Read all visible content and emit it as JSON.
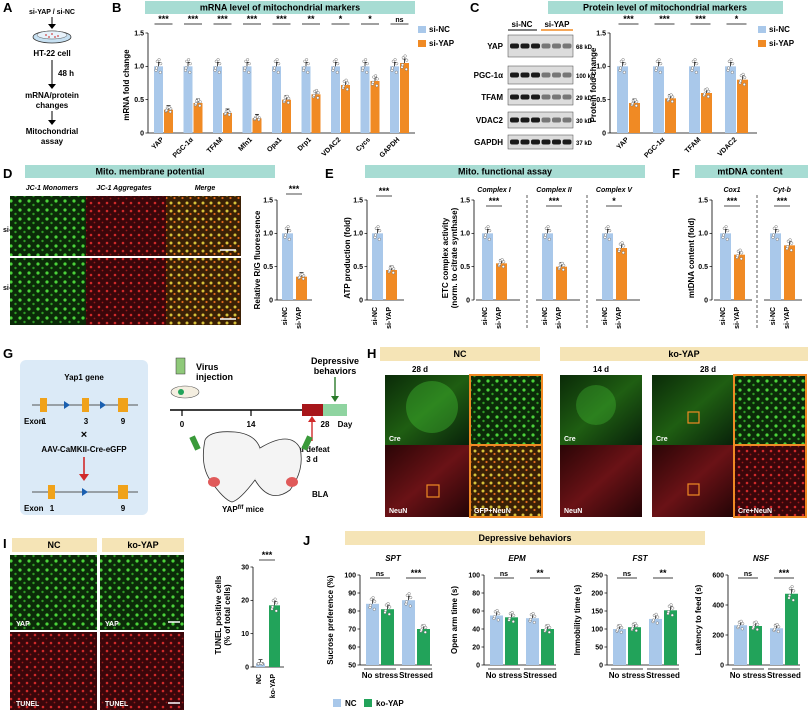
{
  "colors": {
    "nc": "#a9c8ea",
    "yap": "#f08a24",
    "ko": "#22a35a",
    "header_teal": "#a7dcd3",
    "header_beige": "#f5e4b6",
    "dot": "#ffffff"
  },
  "panels": {
    "A": {
      "letter": "A",
      "top_label": "si-YAP / si-NC",
      "cell": "HT-22 cell",
      "time": "48 h",
      "step1": "mRNA/protein",
      "step1b": "changes",
      "step2": "Mitochondrial",
      "step2b": "assay"
    },
    "B": {
      "letter": "B",
      "header": "mRNA level of mitochondrial markers",
      "ylabel": "mRNA fold change"
    },
    "C": {
      "letter": "C",
      "header": "Protein level of mitochondrial markers",
      "ylabel": "Protein fold change",
      "blot_cols": [
        "si-NC",
        "si-YAP"
      ],
      "blot_rows": [
        {
          "name": "YAP",
          "kd": "68 kD"
        },
        {
          "name": "PGC-1α",
          "kd": "100 kD"
        },
        {
          "name": "TFAM",
          "kd": "29 kD"
        },
        {
          "name": "VDAC2",
          "kd": "30 kD"
        },
        {
          "name": "GAPDH",
          "kd": "37 kD"
        }
      ]
    },
    "D": {
      "letter": "D",
      "header": "Mito. membrane potential",
      "cols": [
        "JC-1 Monomers",
        "JC-1 Aggregates",
        "Merge"
      ],
      "rows": [
        "si-NC",
        "si-YAP"
      ],
      "ylabel": "Relative R/G fluorescence"
    },
    "E": {
      "letter": "E",
      "header": "Mito. functional assay",
      "ylabel1": "ATP production (fold)",
      "ylabel2a": "ETC complex activity",
      "ylabel2b": "(norm. to citrate synthase)",
      "complexes": [
        "Complex I",
        "Complex II",
        "Complex V"
      ]
    },
    "F": {
      "letter": "F",
      "header": "mtDNA content",
      "ylabel": "mtDNA content (fold)",
      "genes": [
        "Cox1",
        "Cyt-b"
      ]
    },
    "G": {
      "letter": "G",
      "gene": "Yap1 gene",
      "exon_label": "Exon",
      "exon_nums": [
        "1",
        "3",
        "9"
      ],
      "exon_nums2": [
        "1",
        "9"
      ],
      "virus": "AAV-CaMKII-Cre-eGFP",
      "cross": "×",
      "tl_virus1": "Virus",
      "tl_virus2": "injection",
      "tl_dep1": "Depressive",
      "tl_dep2": "behaviors",
      "tl_ticks": [
        "0",
        "14",
        "28",
        "Day"
      ],
      "tl_sd1": "Social defeat",
      "tl_sd2": "3 d",
      "bla": "BLA",
      "mice": "YAP",
      "mice_sup": "f/f",
      "mice_suffix": " mice"
    },
    "H": {
      "letter": "H",
      "nc": "NC",
      "ko": "ko-YAP",
      "t28": "28 d",
      "t14": "14 d",
      "t28b": "28 d",
      "labels": [
        "Cre",
        "NeuN",
        "GFP+NeuN",
        "Cre",
        "NeuN",
        "Cre",
        "Cre+NeuN"
      ]
    },
    "I": {
      "letter": "I",
      "nc": "NC",
      "ko": "ko-YAP",
      "labels": [
        "YAP",
        "YAP",
        "TUNEL",
        "TUNEL"
      ],
      "ylabel1": "TUNEL positive cells",
      "ylabel2": "(% of total cells)"
    },
    "J": {
      "letter": "J",
      "header": "Depressive behaviors",
      "legend": [
        "NC",
        "ko-YAP"
      ],
      "groups": [
        "No stress",
        "Stressed"
      ]
    }
  },
  "chart_data": [
    {
      "id": "B",
      "type": "bar",
      "categories": [
        "YAP",
        "PGC-1α",
        "TFAM",
        "Mfn1",
        "Opa1",
        "Drp1",
        "VDAC2",
        "Cycs",
        "GAPDH"
      ],
      "series": [
        {
          "name": "si-NC",
          "values": [
            1.0,
            1.0,
            1.0,
            1.0,
            1.0,
            1.0,
            1.0,
            1.0,
            1.0
          ]
        },
        {
          "name": "si-YAP",
          "values": [
            0.35,
            0.45,
            0.3,
            0.22,
            0.5,
            0.58,
            0.72,
            0.78,
            1.05
          ]
        }
      ],
      "sig": [
        "***",
        "***",
        "***",
        "***",
        "***",
        "**",
        "*",
        "*",
        "ns"
      ],
      "ylim": [
        0,
        1.5
      ],
      "yticks": [
        "0",
        "0.5",
        "1.0",
        "1.5"
      ]
    },
    {
      "id": "C",
      "type": "bar",
      "categories": [
        "YAP",
        "PGC-1α",
        "TFAM",
        "VDAC2"
      ],
      "series": [
        {
          "name": "si-NC",
          "values": [
            1.0,
            1.0,
            1.0,
            1.0
          ]
        },
        {
          "name": "si-YAP",
          "values": [
            0.45,
            0.52,
            0.6,
            0.8
          ]
        }
      ],
      "sig": [
        "***",
        "***",
        "***",
        "*"
      ],
      "ylim": [
        0,
        1.5
      ],
      "yticks": [
        "0",
        "0.5",
        "1.0",
        "1.5"
      ]
    },
    {
      "id": "D",
      "type": "bar",
      "categories": [
        "si-NC",
        "si-YAP"
      ],
      "values": [
        1.0,
        0.35
      ],
      "sig": [
        "***"
      ],
      "ylim": [
        0,
        1.5
      ],
      "yticks": [
        "0",
        "0.5",
        "1.0",
        "1.5"
      ]
    },
    {
      "id": "E1",
      "type": "bar",
      "categories": [
        "si-NC",
        "si-YAP"
      ],
      "values": [
        1.0,
        0.45
      ],
      "sig": [
        "***"
      ],
      "ylim": [
        0,
        1.5
      ],
      "yticks": [
        "0",
        "0.5",
        "1.0",
        "1.5"
      ]
    },
    {
      "id": "E2",
      "type": "bar",
      "groups": [
        "Complex I",
        "Complex II",
        "Complex V"
      ],
      "categories": [
        "si-NC",
        "si-YAP"
      ],
      "values": [
        [
          1.0,
          0.55
        ],
        [
          1.0,
          0.5
        ],
        [
          1.0,
          0.78
        ]
      ],
      "sig": [
        "***",
        "***",
        "*"
      ],
      "ylim": [
        0,
        1.5
      ],
      "yticks": [
        "0",
        "0.5",
        "1.0",
        "1.5"
      ]
    },
    {
      "id": "F",
      "type": "bar",
      "groups": [
        "Cox1",
        "Cyt-b"
      ],
      "categories": [
        "si-NC",
        "si-YAP"
      ],
      "values": [
        [
          1.0,
          0.68
        ],
        [
          1.0,
          0.82
        ]
      ],
      "sig": [
        "***",
        "***"
      ],
      "ylim": [
        0,
        1.5
      ],
      "yticks": [
        "0",
        "0.5",
        "1.0",
        "1.5"
      ]
    },
    {
      "id": "I",
      "type": "bar",
      "categories": [
        "NC",
        "ko-YAP"
      ],
      "values": [
        1.0,
        18.5
      ],
      "sig": [
        "***"
      ],
      "ylim": [
        0,
        30
      ],
      "yticks": [
        "0",
        "10",
        "20",
        "30"
      ]
    },
    {
      "id": "J1",
      "title": "SPT",
      "type": "bar",
      "ylabel": "Sucrose preference (%)",
      "groups": [
        "No stress",
        "Stressed"
      ],
      "series": [
        {
          "name": "NC",
          "values": [
            84,
            86
          ]
        },
        {
          "name": "ko-YAP",
          "values": [
            81,
            70
          ]
        }
      ],
      "sig": [
        "ns",
        "***"
      ],
      "ylim": [
        50,
        100
      ],
      "yticks": [
        "50",
        "60",
        "70",
        "80",
        "90",
        "100"
      ]
    },
    {
      "id": "J2",
      "title": "EPM",
      "type": "bar",
      "ylabel": "Open arm time (s)",
      "groups": [
        "No stress",
        "Stressed"
      ],
      "series": [
        {
          "name": "NC",
          "values": [
            55,
            52
          ]
        },
        {
          "name": "ko-YAP",
          "values": [
            53,
            40
          ]
        }
      ],
      "sig": [
        "ns",
        "**"
      ],
      "ylim": [
        0,
        100
      ],
      "yticks": [
        "0",
        "20",
        "40",
        "60",
        "80",
        "100"
      ]
    },
    {
      "id": "J3",
      "title": "FST",
      "type": "bar",
      "ylabel": "Immobility time (s)",
      "groups": [
        "No stress",
        "Stressed"
      ],
      "series": [
        {
          "name": "NC",
          "values": [
            100,
            128
          ]
        },
        {
          "name": "ko-YAP",
          "values": [
            105,
            152
          ]
        }
      ],
      "sig": [
        "ns",
        "**"
      ],
      "ylim": [
        0,
        250
      ],
      "yticks": [
        "0",
        "50",
        "100",
        "150",
        "200",
        "250"
      ]
    },
    {
      "id": "J4",
      "title": "NSF",
      "type": "bar",
      "ylabel": "Latency to feed (s)",
      "groups": [
        "No stress",
        "Stressed"
      ],
      "series": [
        {
          "name": "NC",
          "values": [
            265,
            245
          ]
        },
        {
          "name": "ko-YAP",
          "values": [
            260,
            475
          ]
        }
      ],
      "sig": [
        "ns",
        "***"
      ],
      "ylim": [
        0,
        600
      ],
      "yticks": [
        "0",
        "200",
        "400",
        "600"
      ]
    }
  ]
}
